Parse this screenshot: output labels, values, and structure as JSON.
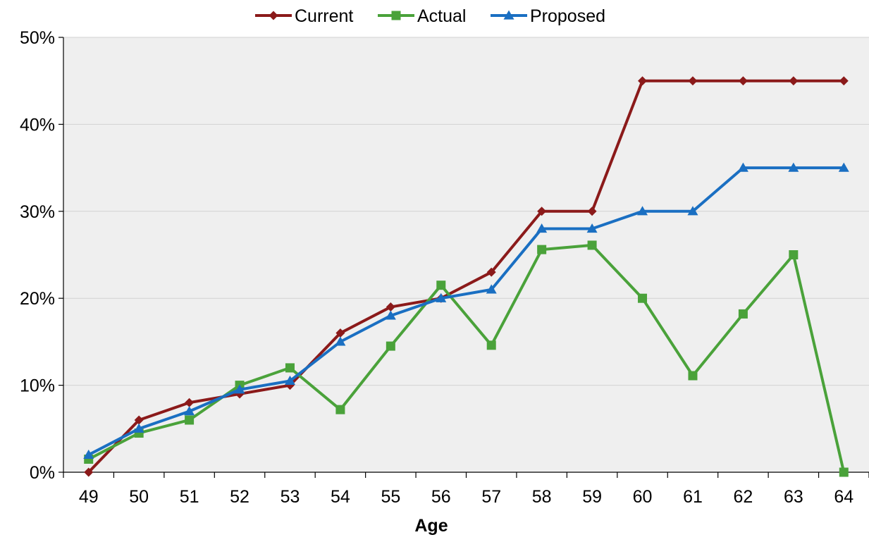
{
  "chart_data": {
    "type": "line",
    "xlabel": "Age",
    "ylabel": "",
    "categories": [
      "49",
      "50",
      "51",
      "52",
      "53",
      "54",
      "55",
      "56",
      "57",
      "58",
      "59",
      "60",
      "61",
      "62",
      "63",
      "64"
    ],
    "ylim": [
      0,
      50
    ],
    "y_ticks": [
      "0%",
      "10%",
      "20%",
      "30%",
      "40%",
      "50%"
    ],
    "y_tick_values": [
      0,
      10,
      20,
      30,
      40,
      50
    ],
    "grid": true,
    "legend_position": "top",
    "plot_background": "#efefef",
    "series": [
      {
        "name": "Current",
        "color": "#8b1a1a",
        "marker": "diamond",
        "values": [
          0,
          6,
          8,
          9,
          10,
          16,
          19,
          20,
          23,
          30,
          30,
          45,
          45,
          45,
          45,
          45
        ]
      },
      {
        "name": "Actual",
        "color": "#4aa23a",
        "marker": "square",
        "values": [
          1.5,
          4.5,
          6,
          10,
          12,
          7.2,
          14.5,
          21.5,
          14.6,
          25.6,
          26.1,
          20,
          11.1,
          18.2,
          25,
          0
        ]
      },
      {
        "name": "Proposed",
        "color": "#1a6fc2",
        "marker": "triangle",
        "values": [
          2,
          5,
          7,
          9.5,
          10.5,
          15,
          18,
          20,
          21,
          28,
          28,
          30,
          30,
          35,
          35,
          35
        ]
      }
    ]
  }
}
